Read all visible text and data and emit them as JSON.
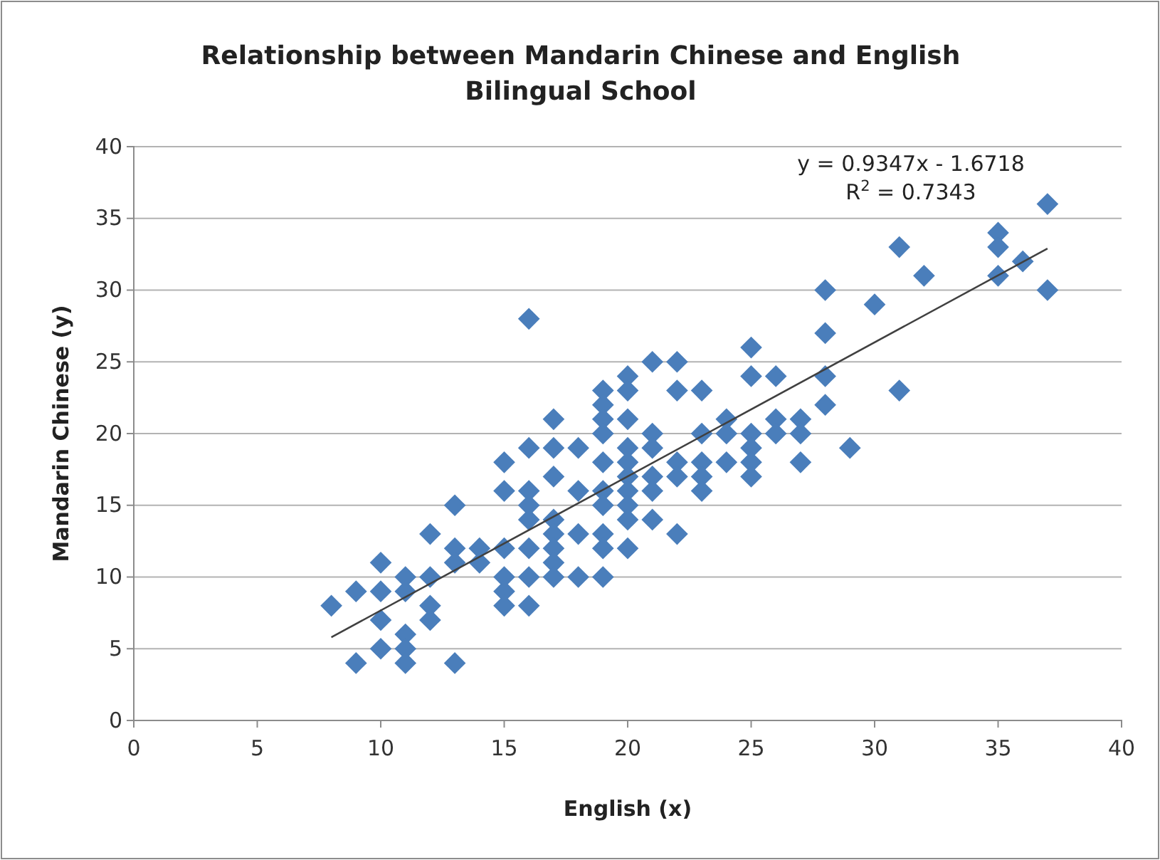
{
  "chart_data": {
    "type": "scatter",
    "title": "Relationship between Mandarin Chinese and English Bilingual School",
    "xlabel": "English (x)",
    "ylabel": "Mandarin Chinese (y)",
    "x": [
      8,
      9,
      9,
      10,
      10,
      10,
      10,
      11,
      11,
      11,
      11,
      11,
      12,
      12,
      12,
      12,
      13,
      13,
      13,
      13,
      14,
      14,
      15,
      15,
      15,
      15,
      15,
      15,
      16,
      16,
      16,
      16,
      16,
      16,
      16,
      16,
      17,
      17,
      17,
      17,
      17,
      17,
      17,
      17,
      18,
      18,
      18,
      18,
      19,
      19,
      19,
      19,
      19,
      19,
      19,
      19,
      19,
      19,
      20,
      20,
      20,
      20,
      20,
      20,
      20,
      20,
      20,
      20,
      21,
      21,
      21,
      21,
      21,
      21,
      22,
      22,
      22,
      22,
      22,
      23,
      23,
      23,
      23,
      23,
      24,
      24,
      24,
      25,
      25,
      25,
      25,
      25,
      25,
      26,
      26,
      26,
      27,
      27,
      27,
      28,
      28,
      28,
      28,
      29,
      30,
      31,
      31,
      32,
      35,
      35,
      35,
      36,
      37,
      37
    ],
    "series": [
      {
        "color": "#4a7ebb",
        "marker": "diamond",
        "values": [
          8,
          9,
          4,
          11,
          9,
          7,
          5,
          10,
          9,
          6,
          5,
          4,
          13,
          10,
          8,
          7,
          15,
          12,
          11,
          4,
          12,
          11,
          18,
          16,
          12,
          10,
          9,
          8,
          28,
          19,
          16,
          15,
          14,
          12,
          10,
          8,
          21,
          19,
          17,
          14,
          13,
          12,
          11,
          10,
          19,
          16,
          13,
          10,
          23,
          22,
          21,
          20,
          18,
          16,
          15,
          13,
          12,
          10,
          24,
          23,
          21,
          19,
          18,
          17,
          16,
          15,
          14,
          12,
          25,
          20,
          19,
          17,
          16,
          14,
          25,
          23,
          18,
          17,
          13,
          23,
          20,
          18,
          17,
          16,
          21,
          20,
          18,
          26,
          24,
          20,
          19,
          18,
          17,
          24,
          21,
          20,
          21,
          20,
          18,
          30,
          27,
          24,
          22,
          19,
          29,
          33,
          23,
          31,
          34,
          33,
          31,
          32,
          36,
          30
        ]
      },
      {
        "type": "line",
        "color": "#404040",
        "marker": "none",
        "x": [
          8,
          37
        ],
        "values": [
          5.8,
          32.9
        ]
      }
    ],
    "annotations": [
      "y = 0.9347x - 1.6718",
      "R$^{2}$ = 0.7343"
    ],
    "xlim": [
      0,
      40
    ],
    "ylim": [
      0,
      40
    ],
    "xticks": [
      0,
      5,
      10,
      15,
      20,
      25,
      30,
      35,
      40
    ],
    "yticks": [
      0,
      5,
      10,
      15,
      20,
      25,
      30,
      35,
      40
    ],
    "grid": "y"
  }
}
